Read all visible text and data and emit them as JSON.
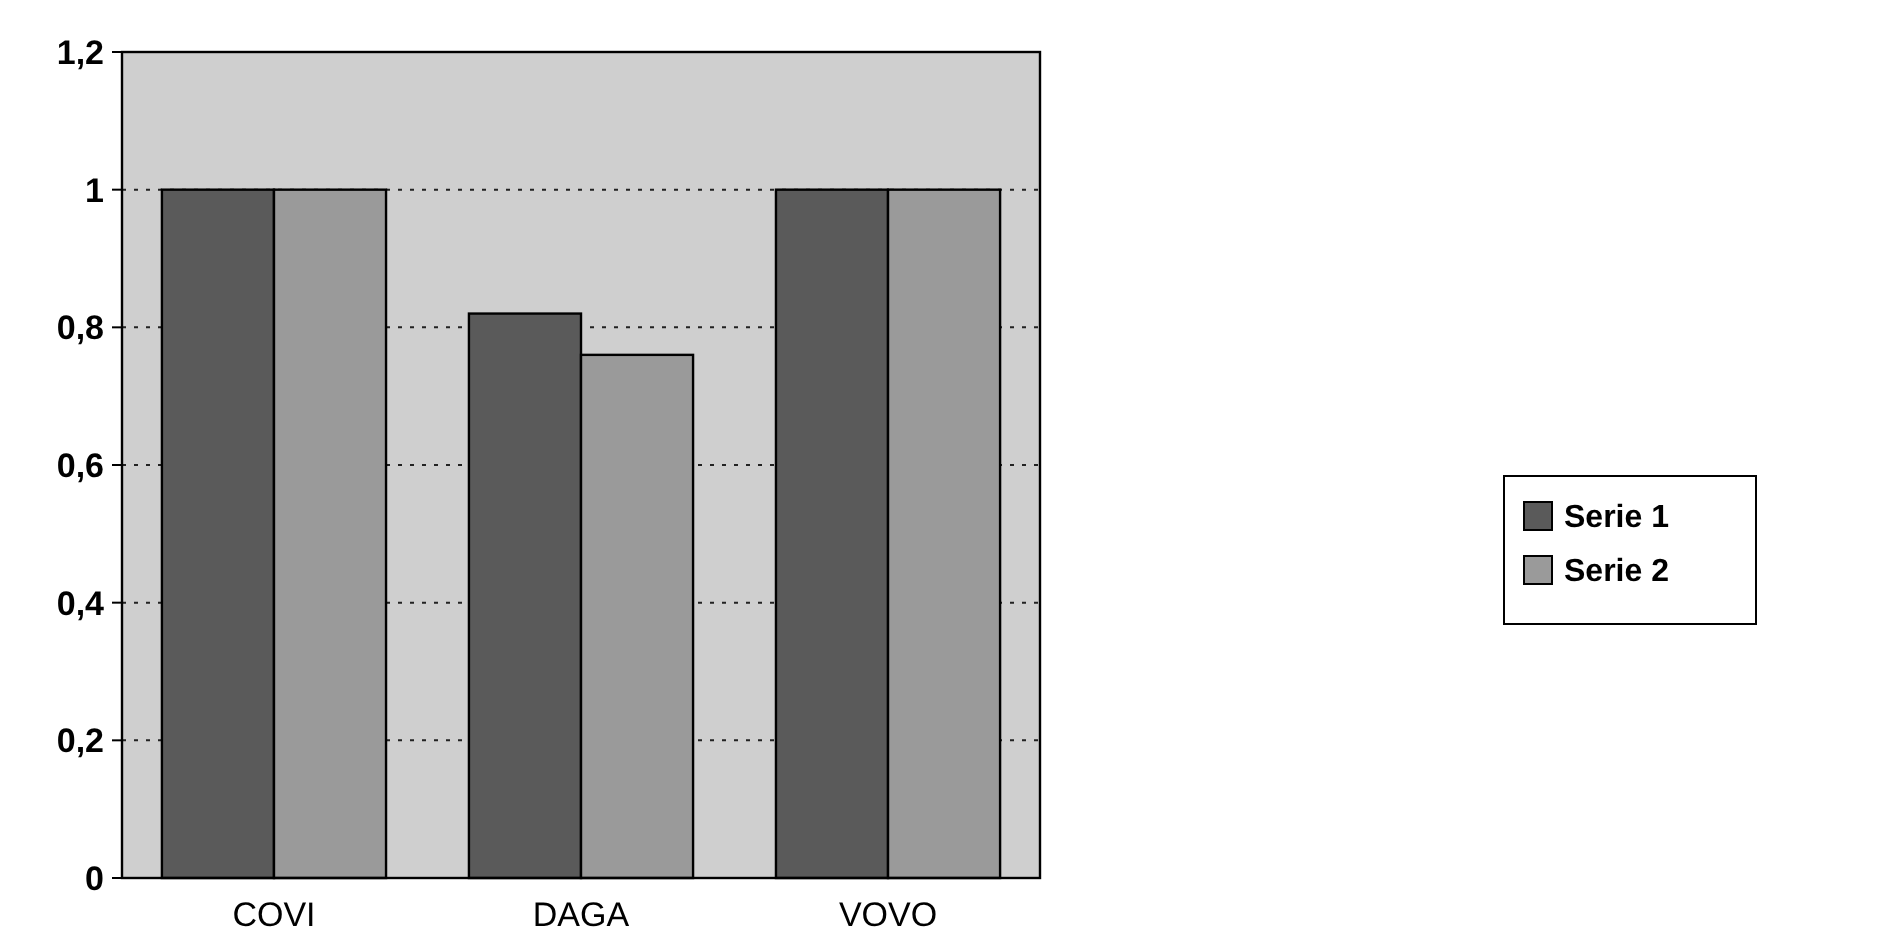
{
  "chart_data": {
    "type": "bar",
    "categories": [
      "COVI",
      "DAGA",
      "VOVO"
    ],
    "series": [
      {
        "name": "Serie 1",
        "color": "#5a5a5a",
        "values": [
          1,
          0.82,
          1
        ]
      },
      {
        "name": "Serie 2",
        "color": "#9a9a9a",
        "values": [
          1,
          0.76,
          1
        ]
      }
    ],
    "ylim": [
      0,
      1.2
    ],
    "yticks": [
      0,
      {
        "value": 0.2,
        "label": "0,2"
      },
      {
        "value": 0.4,
        "label": "0,4"
      },
      {
        "value": 0.6,
        "label": "0,6"
      },
      {
        "value": 0.8,
        "label": "0,8"
      },
      1,
      {
        "value": 1.2,
        "label": "1,2"
      }
    ],
    "grid": "y",
    "legend": "right"
  }
}
